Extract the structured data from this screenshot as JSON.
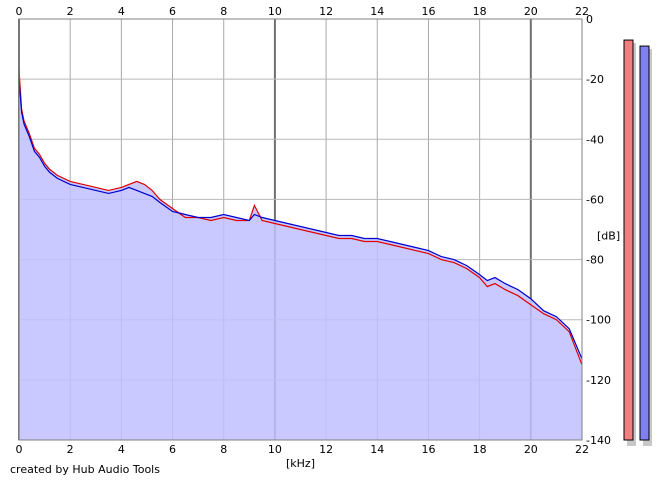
{
  "chart_data": {
    "type": "area",
    "xlabel": "[kHz]",
    "ylabel": "[dB]",
    "xlim": [
      0,
      22
    ],
    "ylim": [
      -140,
      0
    ],
    "x_ticks": [
      0,
      2,
      4,
      6,
      8,
      10,
      12,
      14,
      16,
      18,
      20,
      22
    ],
    "y_ticks": [
      0,
      -20,
      -40,
      -60,
      -80,
      -100,
      -120,
      -140
    ],
    "grid": true,
    "series": [
      {
        "color": "#e00000",
        "x": [
          0,
          0.1,
          0.2,
          0.4,
          0.6,
          0.8,
          1,
          1.2,
          1.5,
          2,
          2.5,
          3,
          3.5,
          4,
          4.3,
          4.6,
          4.9,
          5.2,
          5.5,
          6,
          6.5,
          7,
          7.5,
          8,
          8.5,
          9,
          9.2,
          9.5,
          10,
          10.5,
          11,
          11.5,
          12,
          12.5,
          13,
          13.5,
          14,
          14.5,
          15,
          15.5,
          16,
          16.5,
          17,
          17.5,
          18,
          18.3,
          18.6,
          19,
          19.5,
          20,
          20.5,
          21,
          21.5,
          22
        ],
        "y": [
          -17,
          -30,
          -34,
          -38,
          -43,
          -45,
          -48,
          -50,
          -52,
          -54,
          -55,
          -56,
          -57,
          -56,
          -55,
          -54,
          -55,
          -57,
          -60,
          -63,
          -66,
          -66,
          -67,
          -66,
          -67,
          -67,
          -62,
          -67,
          -68,
          -69,
          -70,
          -71,
          -72,
          -73,
          -73,
          -74,
          -74,
          -75,
          -76,
          -77,
          -78,
          -80,
          -81,
          -83,
          -86,
          -89,
          -88,
          -90,
          -92,
          -95,
          -98,
          -100,
          -104,
          -115
        ]
      },
      {
        "color": "#0000cc",
        "x": [
          0,
          0.1,
          0.2,
          0.4,
          0.6,
          0.8,
          1,
          1.2,
          1.5,
          2,
          2.5,
          3,
          3.5,
          4,
          4.3,
          4.6,
          4.9,
          5.2,
          5.5,
          6,
          6.5,
          7,
          7.5,
          8,
          8.5,
          9,
          9.2,
          9.5,
          10,
          10.5,
          11,
          11.5,
          12,
          12.5,
          13,
          13.5,
          14,
          14.5,
          15,
          15.5,
          16,
          16.5,
          17,
          17.5,
          18,
          18.3,
          18.6,
          19,
          19.5,
          20,
          20.5,
          21,
          21.5,
          22
        ],
        "y": [
          -20,
          -31,
          -35,
          -39,
          -44,
          -46,
          -49,
          -51,
          -53,
          -55,
          -56,
          -57,
          -58,
          -57,
          -56,
          -57,
          -58,
          -59,
          -61,
          -64,
          -65,
          -66,
          -66,
          -65,
          -66,
          -67,
          -65,
          -66,
          -67,
          -68,
          -69,
          -70,
          -71,
          -72,
          -72,
          -73,
          -73,
          -74,
          -75,
          -76,
          -77,
          -79,
          -80,
          -82,
          -85,
          -87,
          -86,
          -88,
          -90,
          -93,
          -97,
          -99,
          -103,
          -113
        ]
      }
    ],
    "fill_color": "#c0c0ff",
    "level_meters": [
      {
        "color": "#f08080",
        "level_db": -7
      },
      {
        "color": "#8080f0",
        "level_db": -9
      }
    ]
  },
  "footer": {
    "caption": "created by Hub Audio Tools"
  }
}
